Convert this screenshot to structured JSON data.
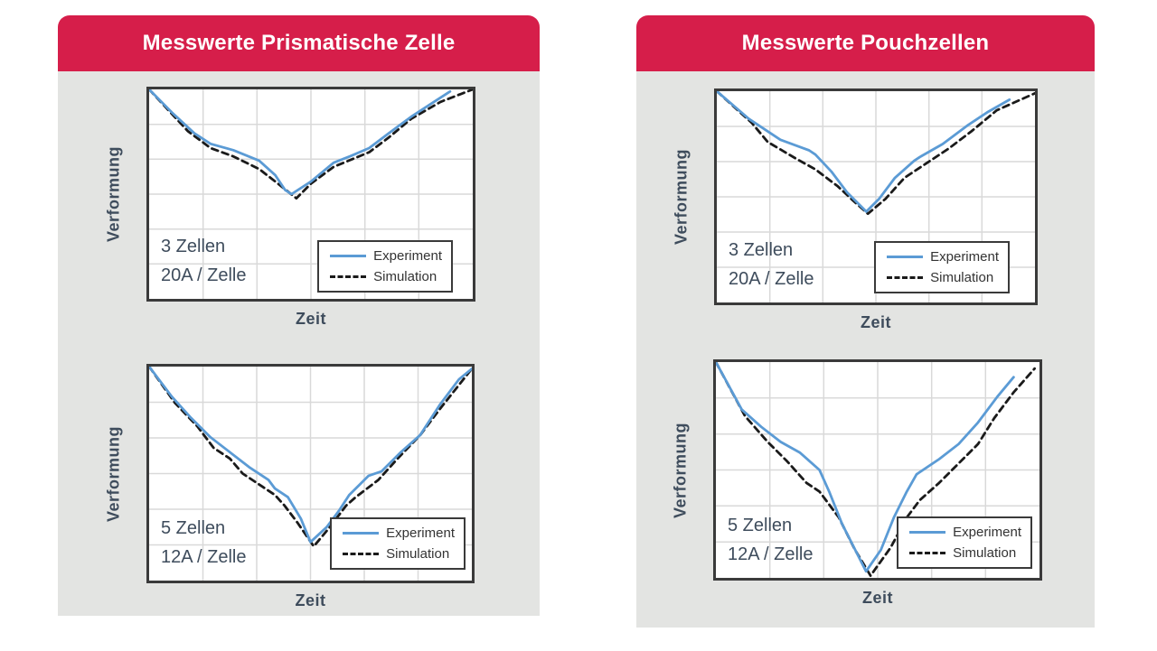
{
  "page": {
    "background": "#FFFFFF"
  },
  "colors": {
    "header_red": "#D61E4A",
    "panel_bg": "#E3E4E2",
    "experiment_blue": "#5B9BD5",
    "simulation_black": "#1A1A1A",
    "grid_gray": "#D9D9D9",
    "frame_gray": "#3A3A3A",
    "label_slate": "#3E4C5C",
    "legend_text": "#333333",
    "title_text": "#FFFFFF"
  },
  "panels": [
    {
      "title": "Messwerte Prismatische Zelle"
    },
    {
      "title": "Messwerte Pouchzellen"
    }
  ],
  "chart_data": [
    {
      "id": "prismatisch-3-zellen",
      "panel": "Messwerte Prismatische Zelle",
      "type": "line",
      "xlabel": "Zeit",
      "ylabel": "Verformung",
      "annotations": [
        "3 Zellen",
        "20A / Zelle"
      ],
      "legend": [
        "Experiment",
        "Simulation"
      ],
      "axes": {
        "ticks": "none",
        "x_range_norm": [
          0,
          1
        ],
        "y_range_norm": [
          0,
          1
        ]
      },
      "grid": {
        "cols": 6,
        "rows": 6,
        "visible": true
      },
      "series": [
        {
          "name": "Experiment",
          "style": "solid",
          "color_key": "experiment_blue",
          "points": [
            [
              0,
              1.0
            ],
            [
              0.07,
              0.89
            ],
            [
              0.14,
              0.79
            ],
            [
              0.19,
              0.74
            ],
            [
              0.26,
              0.71
            ],
            [
              0.34,
              0.66
            ],
            [
              0.39,
              0.59
            ],
            [
              0.42,
              0.52
            ],
            [
              0.44,
              0.5
            ],
            [
              0.5,
              0.56
            ],
            [
              0.57,
              0.65
            ],
            [
              0.62,
              0.68
            ],
            [
              0.68,
              0.72
            ],
            [
              0.74,
              0.79
            ],
            [
              0.81,
              0.87
            ],
            [
              0.89,
              0.95
            ],
            [
              0.93,
              0.99
            ]
          ]
        },
        {
          "name": "Simulation",
          "style": "dashed",
          "color_key": "simulation_black",
          "points": [
            [
              0,
              1.0
            ],
            [
              0.12,
              0.8
            ],
            [
              0.19,
              0.72
            ],
            [
              0.26,
              0.68
            ],
            [
              0.34,
              0.62
            ],
            [
              0.39,
              0.56
            ],
            [
              0.455,
              0.48
            ],
            [
              0.5,
              0.55
            ],
            [
              0.57,
              0.63
            ],
            [
              0.68,
              0.7
            ],
            [
              0.74,
              0.77
            ],
            [
              0.81,
              0.86
            ],
            [
              0.9,
              0.94
            ],
            [
              1.0,
              1.0
            ]
          ]
        }
      ]
    },
    {
      "id": "prismatisch-5-zellen",
      "panel": "Messwerte Prismatische Zelle",
      "type": "line",
      "xlabel": "Zeit",
      "ylabel": "Verformung",
      "annotations": [
        "5 Zellen",
        "12A / Zelle"
      ],
      "legend": [
        "Experiment",
        "Simulation"
      ],
      "axes": {
        "ticks": "none",
        "x_range_norm": [
          0,
          1
        ],
        "y_range_norm": [
          0,
          1
        ]
      },
      "grid": {
        "cols": 6,
        "rows": 6,
        "visible": true
      },
      "series": [
        {
          "name": "Experiment",
          "style": "solid",
          "color_key": "experiment_blue",
          "points": [
            [
              0,
              1.0
            ],
            [
              0.07,
              0.86
            ],
            [
              0.13,
              0.76
            ],
            [
              0.19,
              0.67
            ],
            [
              0.25,
              0.6
            ],
            [
              0.31,
              0.53
            ],
            [
              0.37,
              0.47
            ],
            [
              0.39,
              0.43
            ],
            [
              0.43,
              0.39
            ],
            [
              0.47,
              0.29
            ],
            [
              0.5,
              0.18
            ],
            [
              0.55,
              0.25
            ],
            [
              0.59,
              0.33
            ],
            [
              0.62,
              0.4
            ],
            [
              0.68,
              0.49
            ],
            [
              0.72,
              0.51
            ],
            [
              0.78,
              0.6
            ],
            [
              0.84,
              0.68
            ],
            [
              0.9,
              0.82
            ],
            [
              0.96,
              0.94
            ],
            [
              1.0,
              0.99
            ]
          ]
        },
        {
          "name": "Simulation",
          "style": "dashed",
          "color_key": "simulation_black",
          "points": [
            [
              0,
              1.0
            ],
            [
              0.08,
              0.83
            ],
            [
              0.15,
              0.72
            ],
            [
              0.2,
              0.62
            ],
            [
              0.25,
              0.57
            ],
            [
              0.29,
              0.5
            ],
            [
              0.35,
              0.44
            ],
            [
              0.39,
              0.4
            ],
            [
              0.42,
              0.35
            ],
            [
              0.46,
              0.27
            ],
            [
              0.51,
              0.16
            ],
            [
              0.56,
              0.25
            ],
            [
              0.61,
              0.35
            ],
            [
              0.64,
              0.39
            ],
            [
              0.71,
              0.47
            ],
            [
              0.77,
              0.57
            ],
            [
              0.84,
              0.68
            ],
            [
              0.9,
              0.8
            ],
            [
              1.0,
              0.99
            ]
          ]
        }
      ]
    },
    {
      "id": "pouch-3-zellen",
      "panel": "Messwerte Pouchzellen",
      "type": "line",
      "xlabel": "Zeit",
      "ylabel": "Verformung",
      "annotations": [
        "3 Zellen",
        "20A / Zelle"
      ],
      "legend": [
        "Experiment",
        "Simulation"
      ],
      "axes": {
        "ticks": "none",
        "x_range_norm": [
          0,
          1
        ],
        "y_range_norm": [
          0,
          1
        ]
      },
      "grid": {
        "cols": 6,
        "rows": 6,
        "visible": true
      },
      "series": [
        {
          "name": "Experiment",
          "style": "solid",
          "color_key": "experiment_blue",
          "points": [
            [
              0,
              1.0
            ],
            [
              0.1,
              0.87
            ],
            [
              0.14,
              0.83
            ],
            [
              0.2,
              0.77
            ],
            [
              0.29,
              0.72
            ],
            [
              0.31,
              0.7
            ],
            [
              0.36,
              0.62
            ],
            [
              0.41,
              0.52
            ],
            [
              0.47,
              0.43
            ],
            [
              0.51,
              0.49
            ],
            [
              0.56,
              0.59
            ],
            [
              0.62,
              0.67
            ],
            [
              0.64,
              0.69
            ],
            [
              0.71,
              0.75
            ],
            [
              0.79,
              0.84
            ],
            [
              0.85,
              0.9
            ],
            [
              0.92,
              0.96
            ]
          ]
        },
        {
          "name": "Simulation",
          "style": "dashed",
          "color_key": "simulation_black",
          "points": [
            [
              0,
              1.0
            ],
            [
              0.11,
              0.85
            ],
            [
              0.16,
              0.76
            ],
            [
              0.25,
              0.68
            ],
            [
              0.31,
              0.63
            ],
            [
              0.38,
              0.55
            ],
            [
              0.43,
              0.48
            ],
            [
              0.475,
              0.42
            ],
            [
              0.53,
              0.49
            ],
            [
              0.59,
              0.59
            ],
            [
              0.66,
              0.66
            ],
            [
              0.73,
              0.73
            ],
            [
              0.8,
              0.81
            ],
            [
              0.88,
              0.91
            ],
            [
              1.0,
              0.99
            ]
          ]
        }
      ]
    },
    {
      "id": "pouch-5-zellen",
      "panel": "Messwerte Pouchzellen",
      "type": "line",
      "xlabel": "Zeit",
      "ylabel": "Verformung",
      "annotations": [
        "5 Zellen",
        "12A / Zelle"
      ],
      "legend": [
        "Experiment",
        "Simulation"
      ],
      "axes": {
        "ticks": "none",
        "x_range_norm": [
          0,
          1
        ],
        "y_range_norm": [
          0,
          1
        ]
      },
      "grid": {
        "cols": 6,
        "rows": 6,
        "visible": true
      },
      "series": [
        {
          "name": "Experiment",
          "style": "solid",
          "color_key": "experiment_blue",
          "points": [
            [
              0,
              1.0
            ],
            [
              0.08,
              0.78
            ],
            [
              0.14,
              0.7
            ],
            [
              0.2,
              0.63
            ],
            [
              0.26,
              0.58
            ],
            [
              0.29,
              0.54
            ],
            [
              0.32,
              0.5
            ],
            [
              0.35,
              0.4
            ],
            [
              0.39,
              0.25
            ],
            [
              0.464,
              0.03
            ],
            [
              0.51,
              0.13
            ],
            [
              0.55,
              0.28
            ],
            [
              0.59,
              0.4
            ],
            [
              0.62,
              0.48
            ],
            [
              0.69,
              0.55
            ],
            [
              0.75,
              0.62
            ],
            [
              0.81,
              0.72
            ],
            [
              0.87,
              0.84
            ],
            [
              0.92,
              0.93
            ]
          ]
        },
        {
          "name": "Simulation",
          "style": "dashed",
          "color_key": "simulation_black",
          "points": [
            [
              0,
              1.0
            ],
            [
              0.09,
              0.75
            ],
            [
              0.16,
              0.63
            ],
            [
              0.22,
              0.54
            ],
            [
              0.28,
              0.44
            ],
            [
              0.32,
              0.4
            ],
            [
              0.38,
              0.28
            ],
            [
              0.43,
              0.13
            ],
            [
              0.478,
              0.01
            ],
            [
              0.54,
              0.14
            ],
            [
              0.59,
              0.28
            ],
            [
              0.63,
              0.36
            ],
            [
              0.69,
              0.44
            ],
            [
              0.75,
              0.53
            ],
            [
              0.81,
              0.62
            ],
            [
              0.86,
              0.74
            ],
            [
              0.92,
              0.86
            ],
            [
              0.985,
              0.97
            ]
          ]
        }
      ]
    }
  ]
}
